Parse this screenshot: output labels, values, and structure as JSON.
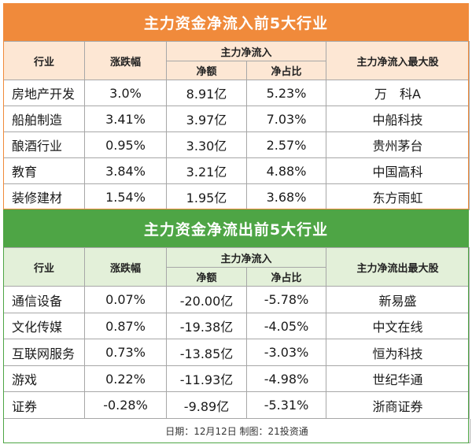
{
  "inflow": {
    "title": "主力资金净流入前5大行业",
    "headers": {
      "industry": "行业",
      "change": "涨跌幅",
      "main_flow": "主力净流入",
      "net_amount": "净额",
      "net_ratio": "净占比",
      "top_stock": "主力净流入最大股"
    },
    "rows": [
      {
        "industry": "房地产开发",
        "change": "3.0%",
        "net_amount": "8.91亿",
        "net_ratio": "5.23%",
        "top_stock": "万　科A"
      },
      {
        "industry": "船舶制造",
        "change": "3.41%",
        "net_amount": "3.97亿",
        "net_ratio": "7.03%",
        "top_stock": "中船科技"
      },
      {
        "industry": "酿酒行业",
        "change": "0.95%",
        "net_amount": "3.30亿",
        "net_ratio": "2.57%",
        "top_stock": "贵州茅台"
      },
      {
        "industry": "教育",
        "change": "3.84%",
        "net_amount": "3.21亿",
        "net_ratio": "4.88%",
        "top_stock": "中国高科"
      },
      {
        "industry": "装修建材",
        "change": "1.54%",
        "net_amount": "1.95亿",
        "net_ratio": "3.68%",
        "top_stock": "东方雨虹"
      }
    ]
  },
  "outflow": {
    "title": "主力资金净流出前5大行业",
    "headers": {
      "industry": "行业",
      "change": "涨跌幅",
      "main_flow": "主力净流入",
      "net_amount": "净额",
      "net_ratio": "净占比",
      "top_stock": "主力净流出最大股"
    },
    "rows": [
      {
        "industry": "通信设备",
        "change": "0.07%",
        "net_amount": "-20.00亿",
        "net_ratio": "-5.78%",
        "top_stock": "新易盛"
      },
      {
        "industry": "文化传媒",
        "change": "0.87%",
        "net_amount": "-19.38亿",
        "net_ratio": "-4.05%",
        "top_stock": "中文在线"
      },
      {
        "industry": "互联网服务",
        "change": "0.73%",
        "net_amount": "-13.85亿",
        "net_ratio": "-3.03%",
        "top_stock": "恒为科技"
      },
      {
        "industry": "游戏",
        "change": "0.22%",
        "net_amount": "-11.93亿",
        "net_ratio": "-4.98%",
        "top_stock": "世纪华通"
      },
      {
        "industry": "证券",
        "change": "-0.28%",
        "net_amount": "-9.89亿",
        "net_ratio": "-5.31%",
        "top_stock": "浙商证券"
      }
    ]
  },
  "footer": "日期：12月12日 制图：21投资通",
  "colors": {
    "inflow_accent": "#f08a3b",
    "outflow_accent": "#4ea545"
  }
}
